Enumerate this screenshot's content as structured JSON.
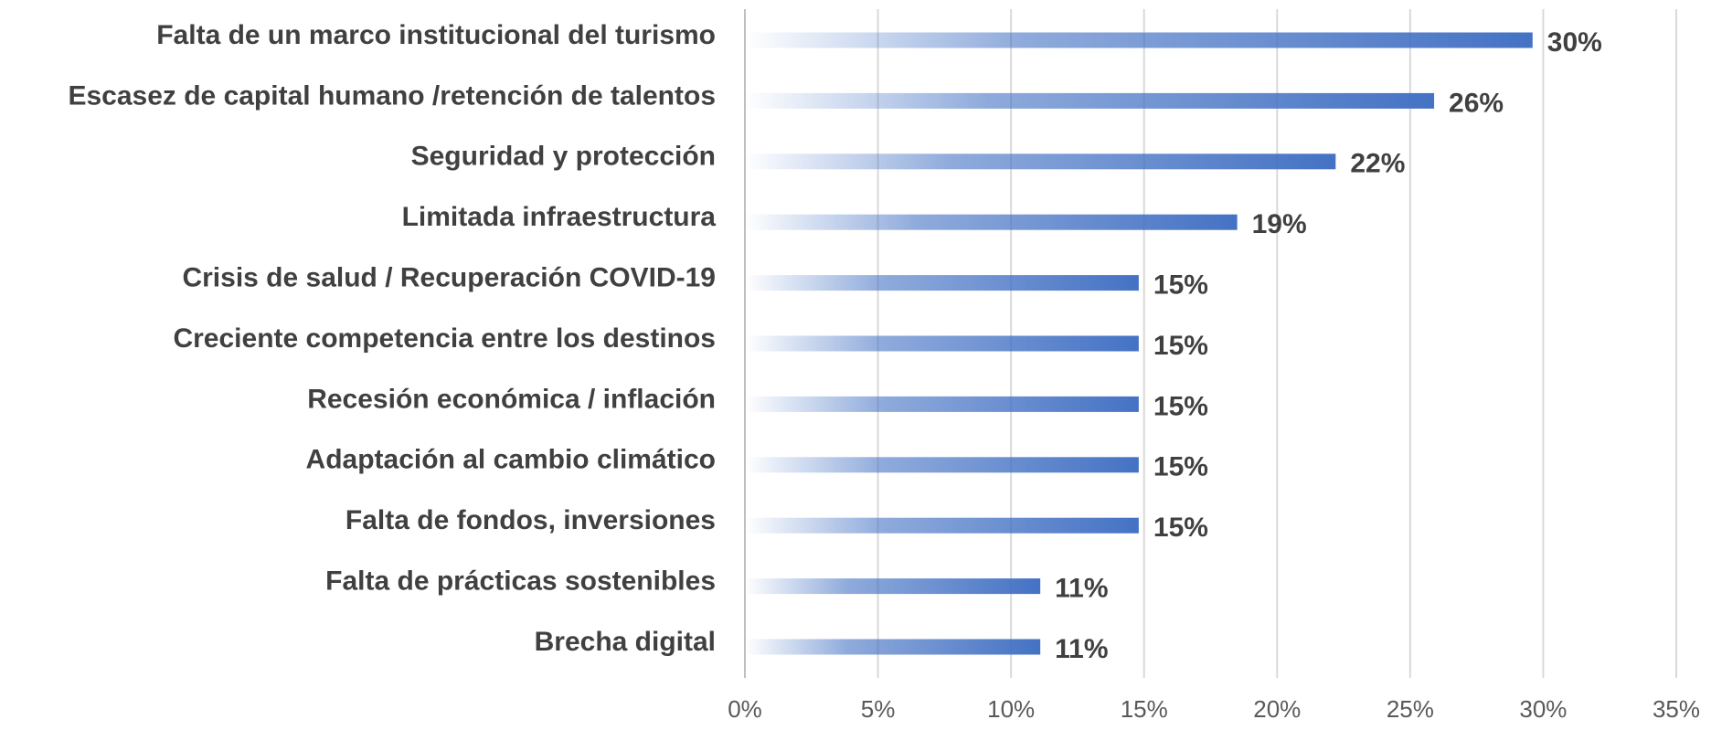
{
  "chart_data": {
    "type": "bar",
    "orientation": "horizontal",
    "categories": [
      "Falta de un marco institucional del turismo",
      "Escasez de capital humano /retención de talentos",
      "Seguridad y protección",
      "Limitada infraestructura",
      "Crisis de salud / Recuperación COVID-19",
      "Creciente competencia entre los destinos",
      "Recesión económica / inflación",
      "Adaptación al cambio climático",
      "Falta de fondos, inversiones",
      "Falta de prácticas sostenibles",
      "Brecha digital"
    ],
    "values": [
      29.6,
      25.9,
      22.2,
      18.5,
      14.8,
      14.8,
      14.8,
      14.8,
      14.8,
      11.1,
      11.1
    ],
    "value_labels": [
      "30%",
      "26%",
      "22%",
      "19%",
      "15%",
      "15%",
      "15%",
      "15%",
      "15%",
      "11%",
      "11%"
    ],
    "color": "#4472c4",
    "xlim": [
      0,
      35
    ],
    "xticks": [
      {
        "value": 0,
        "label": "0%"
      },
      {
        "value": 5,
        "label": "5%"
      },
      {
        "value": 10,
        "label": "10%"
      },
      {
        "value": 15,
        "label": "15%"
      },
      {
        "value": 20,
        "label": "20%"
      },
      {
        "value": 25,
        "label": "25%"
      },
      {
        "value": 30,
        "label": "30%"
      },
      {
        "value": 35,
        "label": "35%"
      }
    ],
    "grid": true
  }
}
